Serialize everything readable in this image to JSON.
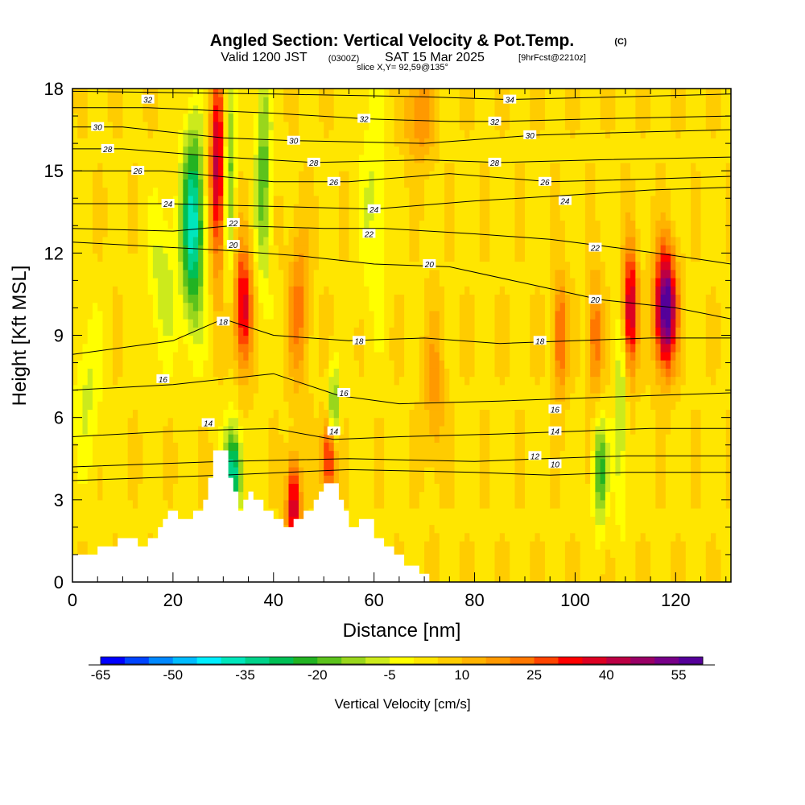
{
  "title": "Angled Section: Vertical Velocity & Pot.Temp.",
  "title_mark": "(C)",
  "subtitle_valid": "Valid 1200 JST",
  "subtitle_z": "(0300Z)",
  "subtitle_date": "SAT 15 Mar 2025",
  "subtitle_fcst": "[9hrFcst@2210z]",
  "slice": "slice X,Y= 92,59@135°",
  "chart_data": {
    "type": "heatmap",
    "xlabel": "Distance [nm]",
    "ylabel": "Height [Kft MSL]",
    "xlim": [
      0,
      131
    ],
    "ylim": [
      0,
      18
    ],
    "x_ticks": [
      0,
      20,
      40,
      60,
      80,
      100,
      120
    ],
    "y_ticks": [
      0,
      3,
      6,
      9,
      12,
      15,
      18
    ],
    "colorbar": {
      "label": "Vertical Velocity [cm/s]",
      "tick_labels": [
        "-65",
        "-50",
        "-35",
        "-20",
        "-5",
        "10",
        "25",
        "40",
        "55"
      ],
      "tick_values": [
        -65,
        -50,
        -35,
        -20,
        -5,
        10,
        25,
        40,
        55
      ],
      "min": -65,
      "max": 60,
      "step": 5,
      "colors": [
        "#0000ff",
        "#0044ff",
        "#0088ff",
        "#00bbff",
        "#00eeff",
        "#00e6bb",
        "#00d28a",
        "#00bf55",
        "#22b322",
        "#5cc21c",
        "#99d61c",
        "#ccea1c",
        "#ffff00",
        "#ffe600",
        "#ffcc00",
        "#ffb300",
        "#ff9900",
        "#ff7700",
        "#ff4400",
        "#ff0000",
        "#dd0022",
        "#bb0044",
        "#990066",
        "#770088",
        "#550099"
      ]
    },
    "terrain_kft": [
      [
        0,
        1.0
      ],
      [
        5,
        1.0
      ],
      [
        5,
        1.3
      ],
      [
        9,
        1.3
      ],
      [
        9,
        1.6
      ],
      [
        13,
        1.6
      ],
      [
        13,
        1.3
      ],
      [
        15,
        1.3
      ],
      [
        15,
        1.6
      ],
      [
        17,
        1.6
      ],
      [
        17,
        2.0
      ],
      [
        18,
        2.0
      ],
      [
        18,
        2.3
      ],
      [
        19,
        2.3
      ],
      [
        19,
        2.6
      ],
      [
        21,
        2.6
      ],
      [
        21,
        2.3
      ],
      [
        24,
        2.3
      ],
      [
        24,
        2.6
      ],
      [
        26,
        2.6
      ],
      [
        26,
        3.0
      ],
      [
        27,
        3.0
      ],
      [
        27,
        3.8
      ],
      [
        28,
        3.8
      ],
      [
        28,
        4.8
      ],
      [
        31,
        4.8
      ],
      [
        31,
        3.8
      ],
      [
        32,
        3.8
      ],
      [
        32,
        3.3
      ],
      [
        33,
        3.3
      ],
      [
        33,
        2.6
      ],
      [
        34,
        2.6
      ],
      [
        34,
        3.0
      ],
      [
        35,
        3.0
      ],
      [
        35,
        3.3
      ],
      [
        36,
        3.3
      ],
      [
        36,
        3.0
      ],
      [
        38,
        3.0
      ],
      [
        38,
        2.6
      ],
      [
        40,
        2.6
      ],
      [
        40,
        2.3
      ],
      [
        42,
        2.3
      ],
      [
        42,
        2.0
      ],
      [
        44,
        2.0
      ],
      [
        44,
        2.3
      ],
      [
        46,
        2.3
      ],
      [
        46,
        2.6
      ],
      [
        48,
        2.6
      ],
      [
        48,
        3.0
      ],
      [
        49,
        3.0
      ],
      [
        49,
        3.3
      ],
      [
        50,
        3.3
      ],
      [
        50,
        3.6
      ],
      [
        53,
        3.6
      ],
      [
        53,
        3.0
      ],
      [
        54,
        3.0
      ],
      [
        54,
        2.6
      ],
      [
        55,
        2.6
      ],
      [
        55,
        2.0
      ],
      [
        57,
        2.0
      ],
      [
        57,
        2.3
      ],
      [
        60,
        2.3
      ],
      [
        60,
        1.6
      ],
      [
        62,
        1.6
      ],
      [
        62,
        1.3
      ],
      [
        64,
        1.3
      ],
      [
        64,
        1.0
      ],
      [
        66,
        1.0
      ],
      [
        66,
        0.6
      ],
      [
        69,
        0.6
      ],
      [
        69,
        0.3
      ],
      [
        71,
        0.3
      ],
      [
        71,
        0.0
      ]
    ],
    "theta_contours": [
      {
        "value": 10,
        "points": [
          [
            0,
            3.7
          ],
          [
            30,
            3.9
          ],
          [
            55,
            4.1
          ],
          [
            80,
            4.0
          ],
          [
            95,
            3.9
          ],
          [
            110,
            4.0
          ],
          [
            131,
            4.0
          ]
        ],
        "labels": [
          [
            96,
            4.3
          ]
        ]
      },
      {
        "value": 12,
        "points": [
          [
            0,
            4.2
          ],
          [
            30,
            4.4
          ],
          [
            55,
            4.5
          ],
          [
            80,
            4.4
          ],
          [
            94,
            4.5
          ],
          [
            110,
            4.6
          ],
          [
            131,
            4.6
          ]
        ],
        "labels": [
          [
            92,
            4.6
          ]
        ]
      },
      {
        "value": 14,
        "points": [
          [
            0,
            5.3
          ],
          [
            20,
            5.5
          ],
          [
            40,
            5.6
          ],
          [
            52,
            5.2
          ],
          [
            65,
            5.3
          ],
          [
            85,
            5.4
          ],
          [
            100,
            5.5
          ],
          [
            115,
            5.6
          ],
          [
            131,
            5.6
          ]
        ],
        "labels": [
          [
            27,
            5.8
          ],
          [
            52,
            5.5
          ],
          [
            96,
            5.5
          ]
        ]
      },
      {
        "value": 16,
        "points": [
          [
            0,
            7.0
          ],
          [
            20,
            7.2
          ],
          [
            40,
            7.6
          ],
          [
            53,
            6.8
          ],
          [
            65,
            6.5
          ],
          [
            85,
            6.6
          ],
          [
            100,
            6.7
          ],
          [
            115,
            6.8
          ],
          [
            131,
            6.9
          ]
        ],
        "labels": [
          [
            18,
            7.4
          ],
          [
            54,
            6.9
          ],
          [
            96,
            6.3
          ]
        ]
      },
      {
        "value": 18,
        "points": [
          [
            0,
            8.3
          ],
          [
            20,
            8.8
          ],
          [
            30,
            9.6
          ],
          [
            40,
            9.0
          ],
          [
            55,
            8.8
          ],
          [
            70,
            8.9
          ],
          [
            85,
            8.7
          ],
          [
            100,
            8.8
          ],
          [
            115,
            8.9
          ],
          [
            131,
            8.9
          ]
        ],
        "labels": [
          [
            30,
            9.5
          ],
          [
            57,
            8.8
          ],
          [
            93,
            8.8
          ]
        ]
      },
      {
        "value": 20,
        "points": [
          [
            0,
            12.4
          ],
          [
            20,
            12.2
          ],
          [
            30,
            12.1
          ],
          [
            45,
            11.9
          ],
          [
            60,
            11.6
          ],
          [
            75,
            11.5
          ],
          [
            90,
            10.9
          ],
          [
            105,
            10.3
          ],
          [
            120,
            10.0
          ],
          [
            131,
            9.6
          ]
        ],
        "labels": [
          [
            32,
            12.3
          ],
          [
            71,
            11.6
          ],
          [
            104,
            10.3
          ]
        ]
      },
      {
        "value": 22,
        "points": [
          [
            0,
            12.9
          ],
          [
            20,
            12.8
          ],
          [
            32,
            13.0
          ],
          [
            50,
            12.9
          ],
          [
            62,
            12.9
          ],
          [
            80,
            12.7
          ],
          [
            95,
            12.5
          ],
          [
            108,
            12.2
          ],
          [
            120,
            11.9
          ],
          [
            131,
            11.6
          ]
        ],
        "labels": [
          [
            32,
            13.1
          ],
          [
            59,
            12.7
          ],
          [
            104,
            12.2
          ]
        ]
      },
      {
        "value": 24,
        "points": [
          [
            0,
            13.8
          ],
          [
            19,
            13.8
          ],
          [
            40,
            13.7
          ],
          [
            60,
            13.6
          ],
          [
            80,
            13.9
          ],
          [
            98,
            14.1
          ],
          [
            115,
            14.3
          ],
          [
            131,
            14.4
          ]
        ],
        "labels": [
          [
            19,
            13.8
          ],
          [
            60,
            13.6
          ],
          [
            98,
            13.9
          ]
        ]
      },
      {
        "value": 26,
        "points": [
          [
            0,
            15.0
          ],
          [
            18,
            15.0
          ],
          [
            40,
            14.6
          ],
          [
            55,
            14.6
          ],
          [
            75,
            14.9
          ],
          [
            95,
            14.6
          ],
          [
            115,
            14.7
          ],
          [
            131,
            14.8
          ]
        ],
        "labels": [
          [
            13,
            15.0
          ],
          [
            52,
            14.6
          ],
          [
            94,
            14.6
          ]
        ]
      },
      {
        "value": 28,
        "points": [
          [
            0,
            15.8
          ],
          [
            10,
            15.8
          ],
          [
            30,
            15.5
          ],
          [
            48,
            15.3
          ],
          [
            70,
            15.4
          ],
          [
            85,
            15.3
          ],
          [
            105,
            15.4
          ],
          [
            131,
            15.5
          ]
        ],
        "labels": [
          [
            7,
            15.8
          ],
          [
            48,
            15.3
          ],
          [
            84,
            15.3
          ]
        ]
      },
      {
        "value": 30,
        "points": [
          [
            0,
            16.6
          ],
          [
            10,
            16.6
          ],
          [
            30,
            16.2
          ],
          [
            44,
            16.1
          ],
          [
            70,
            16.0
          ],
          [
            92,
            16.3
          ],
          [
            110,
            16.4
          ],
          [
            131,
            16.5
          ]
        ],
        "labels": [
          [
            5,
            16.6
          ],
          [
            44,
            16.1
          ],
          [
            91,
            16.3
          ]
        ]
      },
      {
        "value": 32,
        "points": [
          [
            0,
            17.3
          ],
          [
            15,
            17.3
          ],
          [
            40,
            17.1
          ],
          [
            58,
            16.9
          ],
          [
            75,
            16.8
          ],
          [
            85,
            16.8
          ],
          [
            105,
            16.9
          ],
          [
            131,
            17.0
          ]
        ],
        "labels": [
          [
            15,
            17.6
          ],
          [
            58,
            16.9
          ],
          [
            84,
            16.8
          ]
        ]
      },
      {
        "value": 34,
        "points": [
          [
            0,
            17.9
          ],
          [
            40,
            17.8
          ],
          [
            70,
            17.7
          ],
          [
            87,
            17.6
          ],
          [
            110,
            17.7
          ],
          [
            131,
            17.8
          ]
        ],
        "labels": [
          [
            87,
            17.6
          ]
        ]
      }
    ]
  }
}
